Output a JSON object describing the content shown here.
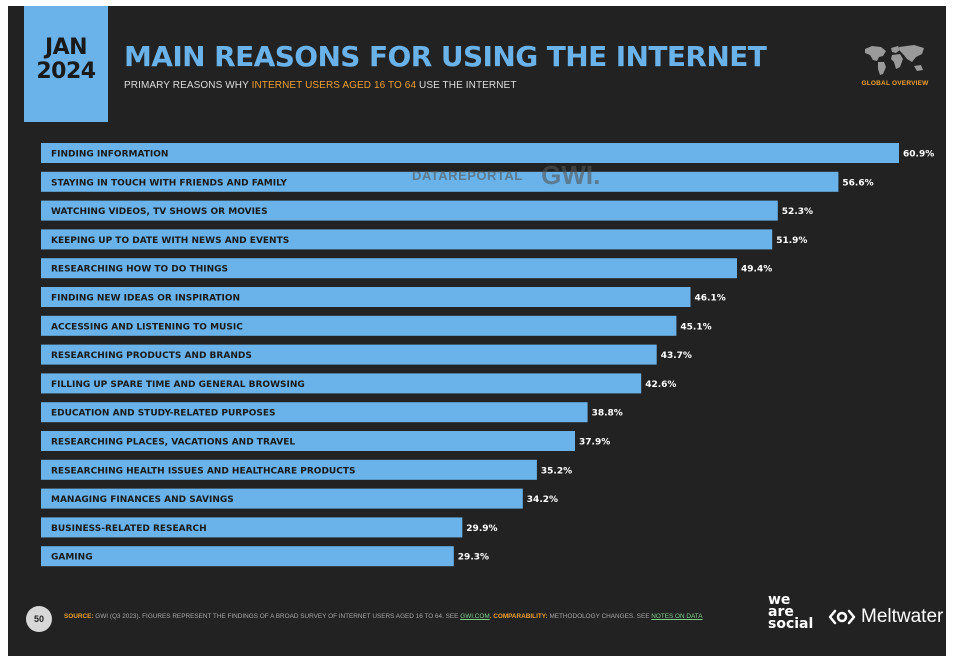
{
  "header": {
    "month": "JAN",
    "year": "2024",
    "title": "MAIN REASONS FOR USING THE INTERNET",
    "subtitle_pre": "PRIMARY REASONS WHY ",
    "subtitle_highlight": "INTERNET USERS AGED 16 TO 64",
    "subtitle_post": " USE THE INTERNET",
    "global_overview_label": "GLOBAL OVERVIEW"
  },
  "watermark": {
    "left": "DATAREPORTAL",
    "right": "GWI."
  },
  "chart_data": {
    "type": "bar",
    "orientation": "horizontal",
    "categories": [
      "FINDING INFORMATION",
      "STAYING IN TOUCH WITH FRIENDS AND FAMILY",
      "WATCHING VIDEOS, TV SHOWS OR MOVIES",
      "KEEPING UP TO DATE WITH NEWS AND EVENTS",
      "RESEARCHING HOW TO DO THINGS",
      "FINDING NEW IDEAS OR INSPIRATION",
      "ACCESSING AND LISTENING TO MUSIC",
      "RESEARCHING PRODUCTS AND BRANDS",
      "FILLING UP SPARE TIME AND GENERAL BROWSING",
      "EDUCATION AND STUDY-RELATED PURPOSES",
      "RESEARCHING PLACES, VACATIONS AND TRAVEL",
      "RESEARCHING HEALTH ISSUES AND HEALTHCARE PRODUCTS",
      "MANAGING FINANCES AND SAVINGS",
      "BUSINESS-RELATED RESEARCH",
      "GAMING"
    ],
    "values": [
      60.9,
      56.6,
      52.3,
      51.9,
      49.4,
      46.1,
      45.1,
      43.7,
      42.6,
      38.8,
      37.9,
      35.2,
      34.2,
      29.9,
      29.3
    ],
    "value_labels": [
      "60.9%",
      "56.6%",
      "52.3%",
      "51.9%",
      "49.4%",
      "46.1%",
      "45.1%",
      "43.7%",
      "42.6%",
      "38.8%",
      "37.9%",
      "35.2%",
      "34.2%",
      "29.9%",
      "29.3%"
    ],
    "unit": "%",
    "xlim": [
      0,
      60.9
    ],
    "grid": false,
    "legend": "none",
    "bar_color": "#69b3ea",
    "label_color": "#1a1a1a",
    "value_color": "#ffffff",
    "background": "#222222"
  },
  "footer": {
    "page_number": "50",
    "source_key": "SOURCE:",
    "source_text": " GWI (Q3 2023). FIGURES REPRESENT THE FINDINGS OF A BROAD SURVEY OF INTERNET USERS AGED 16 TO 64. SEE ",
    "source_link": "GWI.COM",
    "comparability_key": ". COMPARABILITY:",
    "comparability_text": " METHODOLOGY CHANGES. SEE ",
    "notes_link": "NOTES ON DATA",
    "brand_we": "we",
    "brand_are": "are",
    "brand_social": "social",
    "brand_meltwater": "Meltwater"
  },
  "colors": {
    "accent_blue": "#69b3ea",
    "accent_orange": "#f0a030",
    "link_green": "#7fd08a",
    "slide_background": "#222222"
  },
  "icons": {
    "map": "world-map-icon",
    "meltwater": "meltwater-logo-icon"
  }
}
